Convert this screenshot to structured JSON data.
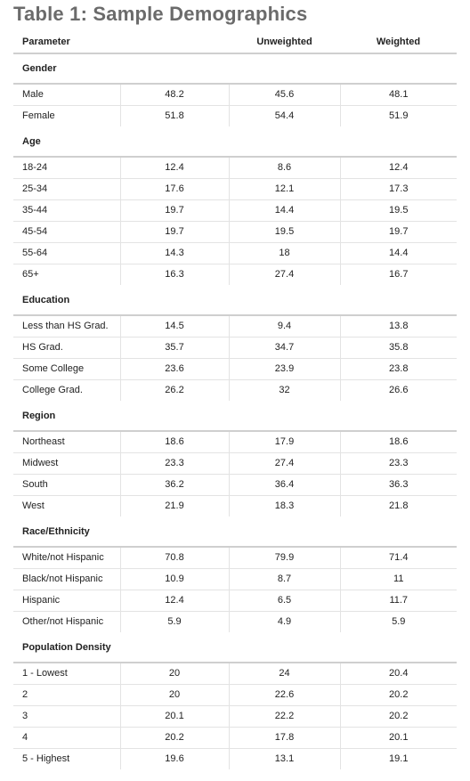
{
  "title": "Table 1: Sample Demographics",
  "header": {
    "parameter": "Parameter",
    "col2": "",
    "unweighted": "Unweighted",
    "weighted": "Weighted"
  },
  "sections": [
    {
      "name": "Gender",
      "rows": [
        {
          "label": "Male",
          "sample": "48.2",
          "unweighted": "45.6",
          "weighted": "48.1"
        },
        {
          "label": "Female",
          "sample": "51.8",
          "unweighted": "54.4",
          "weighted": "51.9"
        }
      ]
    },
    {
      "name": "Age",
      "rows": [
        {
          "label": "18-24",
          "sample": "12.4",
          "unweighted": "8.6",
          "weighted": "12.4"
        },
        {
          "label": "25-34",
          "sample": "17.6",
          "unweighted": "12.1",
          "weighted": "17.3"
        },
        {
          "label": "35-44",
          "sample": "19.7",
          "unweighted": "14.4",
          "weighted": "19.5"
        },
        {
          "label": "45-54",
          "sample": "19.7",
          "unweighted": "19.5",
          "weighted": "19.7"
        },
        {
          "label": "55-64",
          "sample": "14.3",
          "unweighted": "18",
          "weighted": "14.4"
        },
        {
          "label": "65+",
          "sample": "16.3",
          "unweighted": "27.4",
          "weighted": "16.7"
        }
      ]
    },
    {
      "name": "Education",
      "rows": [
        {
          "label": "Less than HS Grad.",
          "sample": "14.5",
          "unweighted": "9.4",
          "weighted": "13.8"
        },
        {
          "label": "HS Grad.",
          "sample": "35.7",
          "unweighted": "34.7",
          "weighted": "35.8"
        },
        {
          "label": "Some College",
          "sample": "23.6",
          "unweighted": "23.9",
          "weighted": "23.8"
        },
        {
          "label": "College Grad.",
          "sample": "26.2",
          "unweighted": "32",
          "weighted": "26.6"
        }
      ]
    },
    {
      "name": "Region",
      "rows": [
        {
          "label": "Northeast",
          "sample": "18.6",
          "unweighted": "17.9",
          "weighted": "18.6"
        },
        {
          "label": "Midwest",
          "sample": "23.3",
          "unweighted": "27.4",
          "weighted": "23.3"
        },
        {
          "label": "South",
          "sample": "36.2",
          "unweighted": "36.4",
          "weighted": "36.3"
        },
        {
          "label": "West",
          "sample": "21.9",
          "unweighted": "18.3",
          "weighted": "21.8"
        }
      ]
    },
    {
      "name": "Race/Ethnicity",
      "rows": [
        {
          "label": "White/not Hispanic",
          "sample": "70.8",
          "unweighted": "79.9",
          "weighted": "71.4"
        },
        {
          "label": "Black/not Hispanic",
          "sample": "10.9",
          "unweighted": "8.7",
          "weighted": "11"
        },
        {
          "label": "Hispanic",
          "sample": "12.4",
          "unweighted": "6.5",
          "weighted": "11.7"
        },
        {
          "label": "Other/not Hispanic",
          "sample": "5.9",
          "unweighted": "4.9",
          "weighted": "5.9"
        }
      ]
    },
    {
      "name": "Population Density",
      "rows": [
        {
          "label": "1 - Lowest",
          "sample": "20",
          "unweighted": "24",
          "weighted": "20.4"
        },
        {
          "label": "2",
          "sample": "20",
          "unweighted": "22.6",
          "weighted": "20.2"
        },
        {
          "label": "3",
          "sample": "20.1",
          "unweighted": "22.2",
          "weighted": "20.2"
        },
        {
          "label": "4",
          "sample": "20.2",
          "unweighted": "17.8",
          "weighted": "20.1"
        },
        {
          "label": "5 - Highest",
          "sample": "19.6",
          "unweighted": "13.1",
          "weighted": "19.1"
        }
      ]
    }
  ]
}
